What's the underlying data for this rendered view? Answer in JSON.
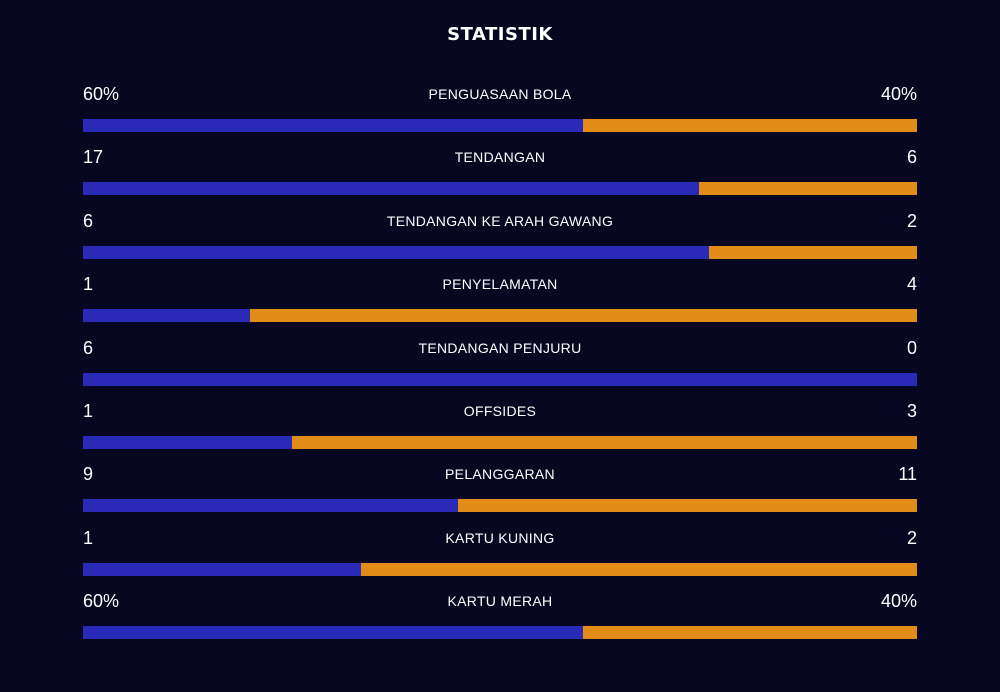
{
  "title": "STATISTIK",
  "colors": {
    "home": "#2a2ab8",
    "away": "#e08c16",
    "background": "#070721"
  },
  "stats": [
    {
      "label": "PENGUASAAN BOLA",
      "home_display": "60%",
      "away_display": "40%",
      "home_share": 0.6
    },
    {
      "label": "TENDANGAN",
      "home_display": "17",
      "away_display": "6",
      "home_share": 0.7391
    },
    {
      "label": "TENDANGAN KE ARAH GAWANG",
      "home_display": "6",
      "away_display": "2",
      "home_share": 0.75
    },
    {
      "label": "PENYELAMATAN",
      "home_display": "1",
      "away_display": "4",
      "home_share": 0.2
    },
    {
      "label": "TENDANGAN PENJURU",
      "home_display": "6",
      "away_display": "0",
      "home_share": 1.0
    },
    {
      "label": "OFFSIDES",
      "home_display": "1",
      "away_display": "3",
      "home_share": 0.25
    },
    {
      "label": "PELANGGARAN",
      "home_display": "9",
      "away_display": "11",
      "home_share": 0.45
    },
    {
      "label": "KARTU KUNING",
      "home_display": "1",
      "away_display": "2",
      "home_share": 0.3333
    },
    {
      "label": "KARTU MERAH",
      "home_display": "60%",
      "away_display": "40%",
      "home_share": 0.6
    }
  ]
}
